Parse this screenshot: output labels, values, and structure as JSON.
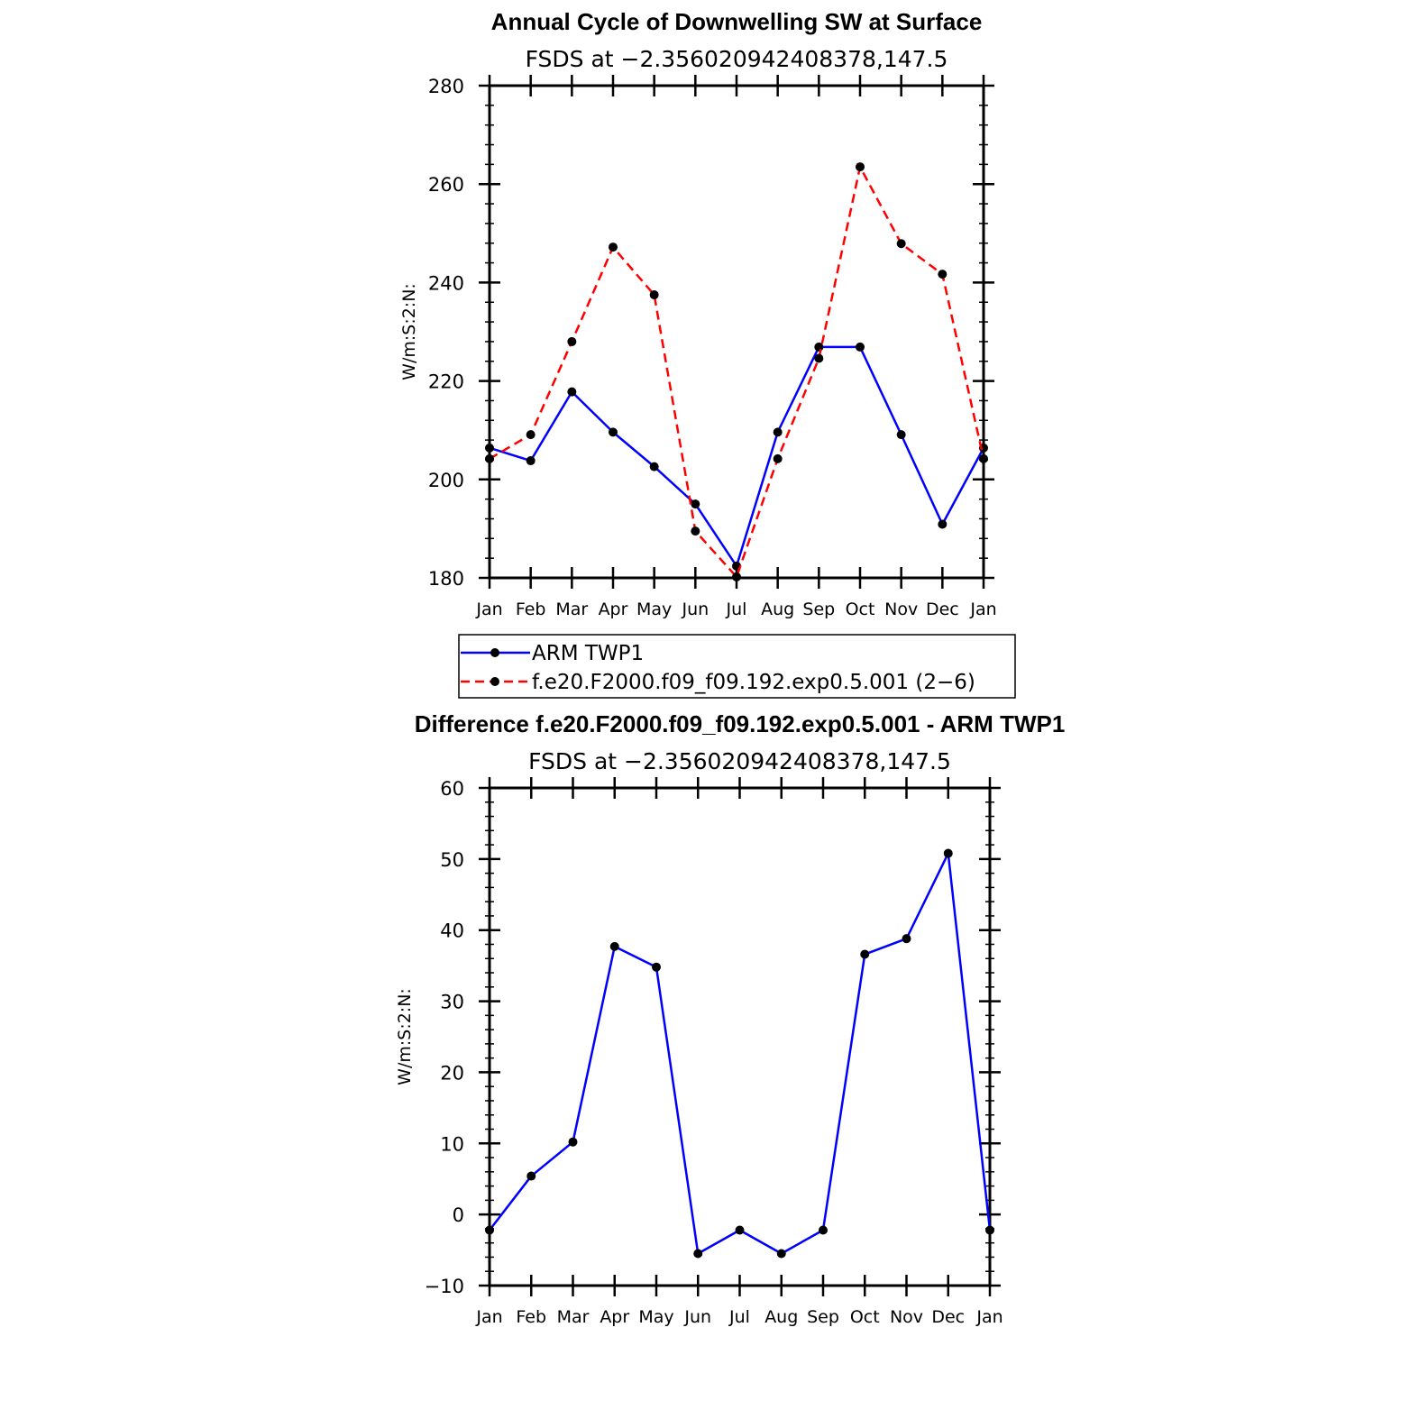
{
  "chart_data": [
    {
      "type": "line",
      "title": "Annual Cycle of Downwelling SW at Surface",
      "subtitle": "FSDS at −2.356020942408378,147.5",
      "ylabel": "W/m:S:2:N:",
      "ylim": [
        180,
        280
      ],
      "yticks": [
        180,
        200,
        220,
        240,
        260,
        280
      ],
      "ytick_labels": [
        "180",
        "200",
        "220",
        "240",
        "260",
        "280"
      ],
      "categories": [
        "Jan",
        "Feb",
        "Mar",
        "Apr",
        "May",
        "Jun",
        "Jul",
        "Aug",
        "Sep",
        "Oct",
        "Nov",
        "Dec",
        "Jan"
      ],
      "series": [
        {
          "name": "ARM TWP1",
          "color": "#0000ff",
          "dash": "solid",
          "values": [
            206.4,
            203.8,
            217.8,
            209.6,
            202.6,
            195.0,
            182.4,
            209.6,
            226.9,
            226.9,
            209.1,
            190.9,
            206.4
          ]
        },
        {
          "name": "f.e20.F2000.f09_f09.192.exp0.5.001 (2−6)",
          "color": "#ff0000",
          "dash": "dashed",
          "values": [
            204.2,
            209.1,
            228.0,
            247.2,
            237.5,
            189.5,
            180.2,
            204.2,
            224.6,
            263.5,
            247.9,
            241.7,
            204.2
          ]
        }
      ],
      "legend": {
        "position": "bottom-center",
        "entries": [
          "ARM TWP1",
          "f.e20.F2000.f09_f09.192.exp0.5.001 (2−6)"
        ]
      }
    },
    {
      "type": "line",
      "title": "Difference f.e20.F2000.f09_f09.192.exp0.5.001 - ARM TWP1",
      "subtitle": "FSDS at −2.356020942408378,147.5",
      "ylabel": "W/m:S:2:N:",
      "ylim": [
        -10,
        60
      ],
      "yticks": [
        -10,
        0,
        10,
        20,
        30,
        40,
        50,
        60
      ],
      "ytick_labels": [
        "−10",
        "0",
        "10",
        "20",
        "30",
        "40",
        "50",
        "60"
      ],
      "categories": [
        "Jan",
        "Feb",
        "Mar",
        "Apr",
        "May",
        "Jun",
        "Jul",
        "Aug",
        "Sep",
        "Oct",
        "Nov",
        "Dec",
        "Jan"
      ],
      "series": [
        {
          "name": "Difference",
          "color": "#0000ff",
          "dash": "solid",
          "values": [
            -2.2,
            5.4,
            10.2,
            37.7,
            34.8,
            -5.5,
            -2.2,
            -5.5,
            -2.2,
            36.6,
            38.8,
            50.8,
            -2.2
          ]
        }
      ]
    }
  ]
}
